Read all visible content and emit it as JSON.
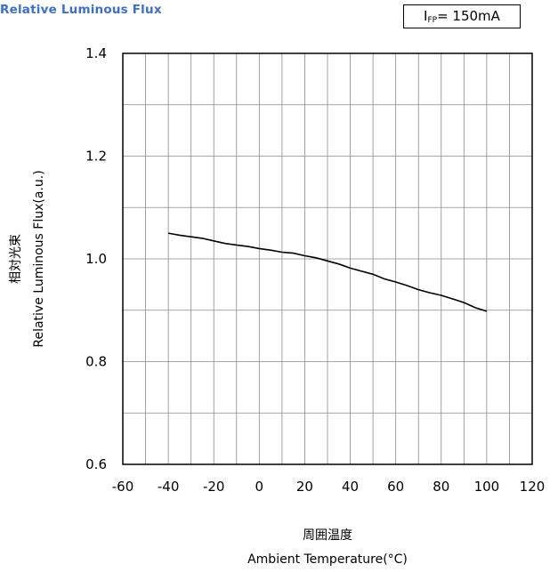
{
  "chart_data": {
    "type": "line",
    "title": "Relative Luminous Flux",
    "annotation": {
      "symbol": "I",
      "subscript": "FP",
      "text": "= 150mA"
    },
    "xlabel_lines": [
      "周囲温度",
      "Ambient Temperature(°C)"
    ],
    "ylabel_lines": [
      "相対光束",
      "Relative Luminous Flux(a.u.)"
    ],
    "xlim": [
      -60,
      120
    ],
    "ylim": [
      0.6,
      1.4
    ],
    "x_ticks": [
      -60,
      -40,
      -20,
      0,
      20,
      40,
      60,
      80,
      100,
      120
    ],
    "x_tick_labels": [
      "-60",
      "-40",
      "-20",
      "0",
      "20",
      "40",
      "60",
      "80",
      "100",
      "120"
    ],
    "y_ticks": [
      0.6,
      0.8,
      1.0,
      1.2,
      1.4
    ],
    "y_tick_labels": [
      "0.6",
      "0.8",
      "1.0",
      "1.2",
      "1.4"
    ],
    "grid": true,
    "line_color": "#000000",
    "series": [
      {
        "x": [
          -40,
          -35,
          -30,
          -25,
          -20,
          -15,
          -10,
          -5,
          0,
          5,
          10,
          15,
          20,
          25,
          30,
          35,
          40,
          45,
          50,
          55,
          60,
          65,
          70,
          75,
          80,
          85,
          90,
          95,
          100
        ],
        "y": [
          1.05,
          1.046,
          1.043,
          1.04,
          1.035,
          1.03,
          1.027,
          1.024,
          1.02,
          1.017,
          1.013,
          1.011,
          1.006,
          1.002,
          0.996,
          0.99,
          0.982,
          0.976,
          0.97,
          0.961,
          0.955,
          0.948,
          0.94,
          0.934,
          0.929,
          0.922,
          0.915,
          0.905,
          0.898
        ]
      }
    ]
  }
}
